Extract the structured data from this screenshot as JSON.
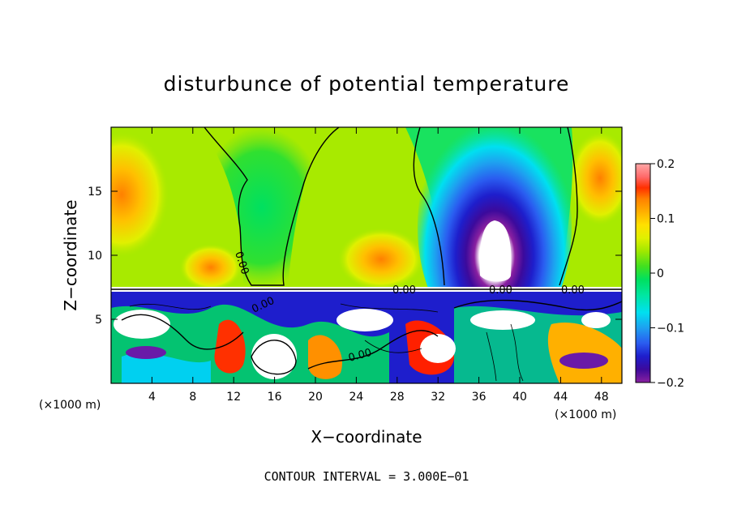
{
  "chart_data": {
    "type": "heatmap",
    "title": "disturbunce of potential temperature",
    "xlabel": "X−coordinate",
    "ylabel": "Z−coordinate",
    "x_unit": "(×1000 m)",
    "x_unit_right": "(×1000 m)",
    "xlim": [
      0,
      50
    ],
    "ylim": [
      0,
      20
    ],
    "x_ticks": [
      4,
      8,
      12,
      16,
      20,
      24,
      28,
      32,
      36,
      40,
      44,
      48
    ],
    "y_ticks": [
      5,
      10,
      15
    ],
    "colorbar": {
      "range": [
        -0.2,
        0.2
      ],
      "ticks": [
        "0.2",
        "0.1",
        "0",
        "−0.1",
        "−0.2"
      ],
      "colors": [
        "#8a20a0",
        "#3c0a9c",
        "#1e1ecc",
        "#2a5cf0",
        "#1ea0f0",
        "#00e0f0",
        "#00e6a0",
        "#00e060",
        "#40e020",
        "#a0e800",
        "#e0f000",
        "#ffe000",
        "#ffb000",
        "#ff8000",
        "#ff4000",
        "#ff0000",
        "#ff6a6a",
        "#ffa0a0"
      ]
    },
    "contour_labels": [
      "0.00",
      "0.00",
      "0.00",
      "0.00",
      "0.00",
      "0.00"
    ],
    "footnote": "CONTOUR INTERVAL = 3.000E−01"
  }
}
